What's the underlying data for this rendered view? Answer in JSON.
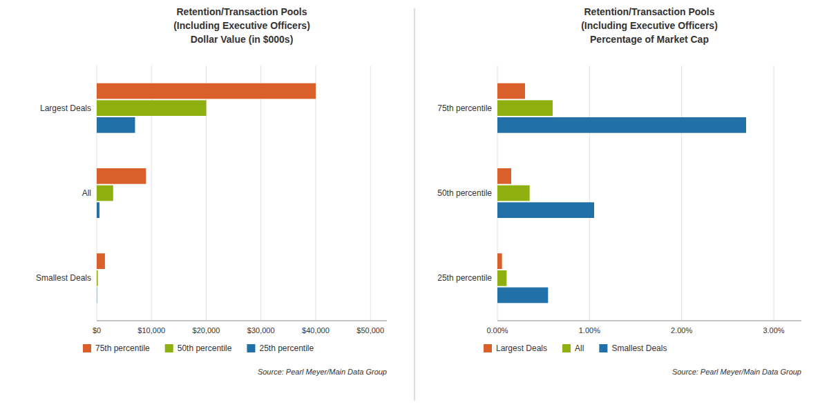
{
  "chart_data": [
    {
      "type": "bar",
      "orientation": "horizontal",
      "title": "Retention/Transaction Pools\n(Including Executive Officers)\nDollar Value (in $000s)",
      "categories": [
        "Largest Deals",
        "All",
        "Smallest Deals"
      ],
      "series": [
        {
          "name": "75th percentile",
          "color": "#D95F2B",
          "values": [
            40000,
            9000,
            1500
          ]
        },
        {
          "name": "50th percentile",
          "color": "#8DB010",
          "values": [
            20000,
            3000,
            200
          ]
        },
        {
          "name": "25th percentile",
          "color": "#2171A8",
          "values": [
            7000,
            500,
            50
          ]
        }
      ],
      "xlim": [
        0,
        53000
      ],
      "xticks": [
        {
          "value": 0,
          "label": "$0"
        },
        {
          "value": 10000,
          "label": "$10,000"
        },
        {
          "value": 20000,
          "label": "$20,000"
        },
        {
          "value": 30000,
          "label": "$30,000"
        },
        {
          "value": 40000,
          "label": "$40,000"
        },
        {
          "value": 50000,
          "label": "$50,000"
        }
      ],
      "grid": true,
      "legend": "bottom-left",
      "annotations": [
        "Source: Pearl Meyer/Main Data Group"
      ]
    },
    {
      "type": "bar",
      "orientation": "horizontal",
      "title": "Retention/Transaction Pools\n(Including Executive Officers)\nPercentage of Market Cap",
      "categories": [
        "75th percentile",
        "50th percentile",
        "25th percentile"
      ],
      "series": [
        {
          "name": "Largest Deals",
          "color": "#D95F2B",
          "values": [
            0.003,
            0.0015,
            0.0005
          ]
        },
        {
          "name": "All",
          "color": "#8DB010",
          "values": [
            0.006,
            0.0035,
            0.001
          ]
        },
        {
          "name": "Smallest Deals",
          "color": "#2171A8",
          "values": [
            0.027,
            0.0105,
            0.0055
          ]
        }
      ],
      "xlim": [
        0,
        0.033
      ],
      "xticks": [
        {
          "value": 0,
          "label": "0.00%"
        },
        {
          "value": 0.01,
          "label": "1.00%"
        },
        {
          "value": 0.02,
          "label": "2.00%"
        },
        {
          "value": 0.03,
          "label": "3.00%"
        }
      ],
      "grid": true,
      "legend": "bottom-left",
      "annotations": [
        "Source: Pearl Meyer/Main Data Group"
      ]
    }
  ]
}
